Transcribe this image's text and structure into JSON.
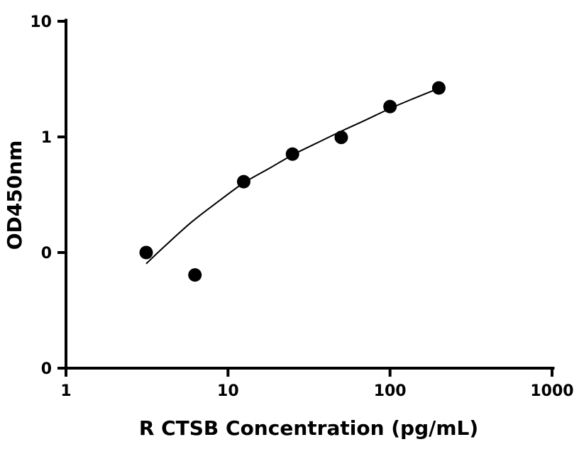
{
  "chart_data": {
    "type": "scatter",
    "title": "",
    "xlabel": "R CTSB Concentration (pg/mL)",
    "ylabel": "OD450nm",
    "x_scale": "log",
    "y_scale": "log",
    "xlim": [
      1,
      1000
    ],
    "ylim": [
      0.01,
      10
    ],
    "x_ticks": [
      {
        "value": 1,
        "label": "1"
      },
      {
        "value": 10,
        "label": "10"
      },
      {
        "value": 100,
        "label": "100"
      },
      {
        "value": 1000,
        "label": "1000"
      }
    ],
    "y_ticks": [
      {
        "value": 0.01,
        "label": "0"
      },
      {
        "value": 0.1,
        "label": "0"
      },
      {
        "value": 1,
        "label": "1"
      },
      {
        "value": 10,
        "label": "10"
      }
    ],
    "grid": false,
    "legend": "none",
    "series": [
      {
        "x": [
          3.125,
          6.25,
          12.5,
          25,
          50,
          100,
          200
        ],
        "y": [
          0.1,
          0.064,
          0.41,
          0.71,
          0.99,
          1.83,
          2.65
        ]
      }
    ],
    "fit_curve": {
      "x": [
        3.125,
        4,
        6,
        9,
        12.5,
        18,
        25,
        35,
        50,
        70,
        100,
        140,
        200
      ],
      "y": [
        0.08,
        0.111,
        0.185,
        0.286,
        0.4,
        0.535,
        0.698,
        0.88,
        1.12,
        1.39,
        1.76,
        2.15,
        2.63
      ]
    },
    "colors": {
      "marker": "#000000",
      "curve": "#000000",
      "axis": "#000000"
    }
  }
}
